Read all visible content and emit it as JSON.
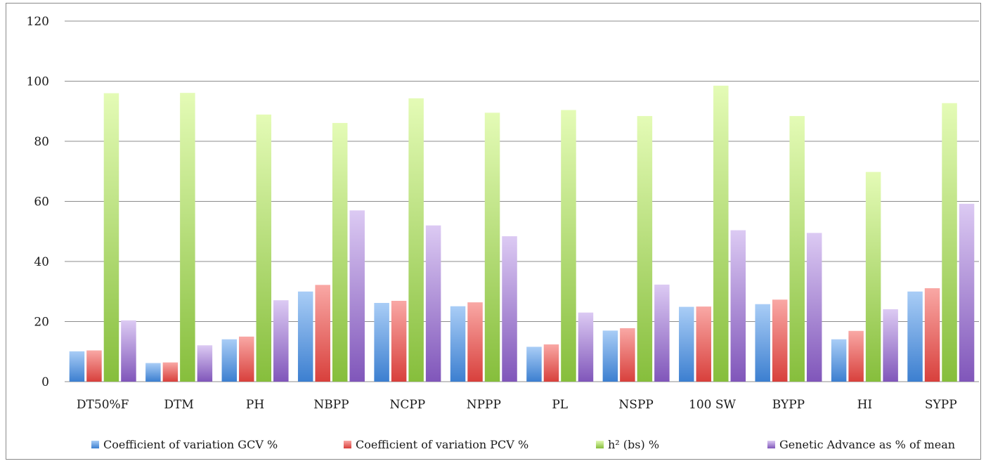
{
  "chart_data": {
    "type": "bar",
    "title": "",
    "xlabel": "",
    "ylabel": "",
    "ylim": [
      0,
      120
    ],
    "yticks": [
      0,
      20,
      40,
      60,
      80,
      100,
      120
    ],
    "grid": true,
    "legend_position": "bottom",
    "categories": [
      "DT50%F",
      "DTM",
      "PH",
      "NBPP",
      "NCPP",
      "NPPP",
      "PL",
      "NSPP",
      "100 SW",
      "BYPP",
      "HI",
      "SYPP"
    ],
    "series": [
      {
        "name": "Coefficient of  variation GCV %",
        "color_top": "#a9cdf6",
        "color_bottom": "#3c7fd0",
        "values": [
          10.1,
          6.2,
          14.1,
          30.0,
          26.2,
          25.1,
          11.6,
          17.0,
          24.9,
          25.8,
          14.1,
          30.0
        ]
      },
      {
        "name": "Coefficient of  variation PCV %",
        "color_top": "#f9a8a5",
        "color_bottom": "#d8403c",
        "values": [
          10.4,
          6.4,
          15.0,
          32.2,
          26.9,
          26.4,
          12.4,
          17.8,
          25.0,
          27.3,
          16.9,
          31.1
        ]
      },
      {
        "name": "h² (bs) %",
        "color_top": "#e4fbb6",
        "color_bottom": "#86be3c",
        "values": [
          96.0,
          96.1,
          88.9,
          86.1,
          94.3,
          89.5,
          90.4,
          88.4,
          98.5,
          88.4,
          69.8,
          92.7
        ]
      },
      {
        "name": "Genetic Advance as % of mean",
        "color_top": "#dccaf3",
        "color_bottom": "#8056ba",
        "values": [
          20.4,
          12.1,
          27.1,
          57.0,
          52.0,
          48.4,
          23.0,
          32.3,
          50.4,
          49.5,
          24.1,
          59.2
        ]
      }
    ]
  }
}
